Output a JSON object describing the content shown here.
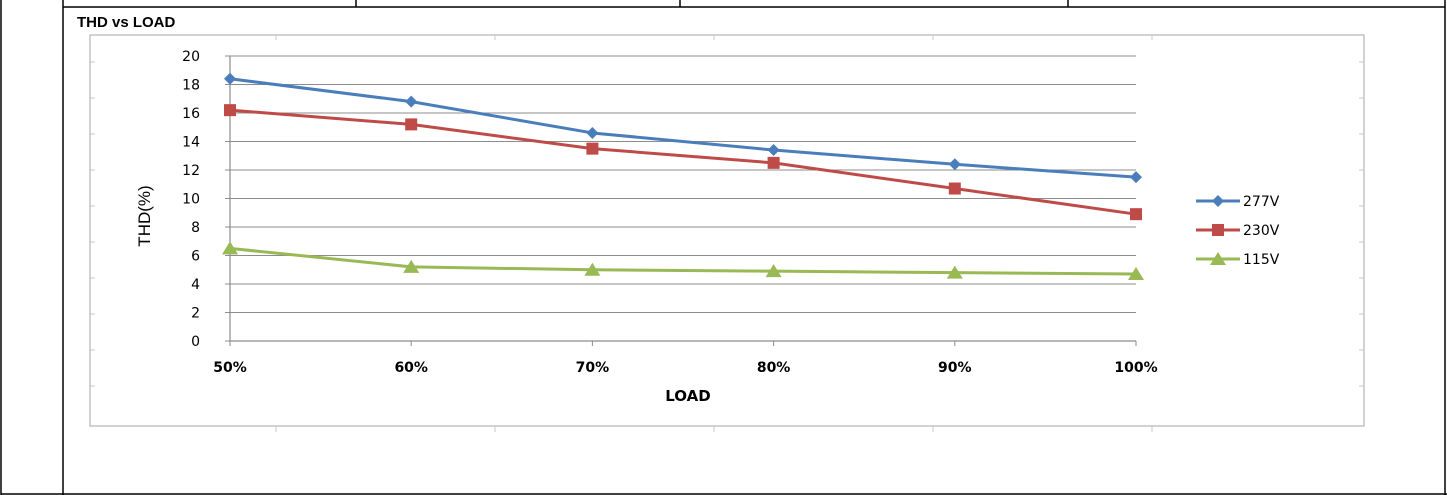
{
  "chart_data": {
    "type": "line",
    "title": "THD vs LOAD",
    "xlabel": "LOAD",
    "ylabel": "THD(%)",
    "categories": [
      "50%",
      "60%",
      "70%",
      "80%",
      "90%",
      "100%"
    ],
    "ylim": [
      0,
      20
    ],
    "yticks": [
      0,
      2,
      4,
      6,
      8,
      10,
      12,
      14,
      16,
      18,
      20
    ],
    "grid": true,
    "legend_position": "right",
    "series": [
      {
        "name": "277V",
        "color": "#4a7ebb",
        "marker": "diamond",
        "values": [
          18.4,
          16.8,
          14.6,
          13.4,
          12.4,
          11.5
        ]
      },
      {
        "name": "230V",
        "color": "#be4b48",
        "marker": "square",
        "values": [
          16.2,
          15.2,
          13.5,
          12.5,
          10.7,
          8.9
        ]
      },
      {
        "name": "115V",
        "color": "#98b954",
        "marker": "triangle",
        "values": [
          6.5,
          5.2,
          5.0,
          4.9,
          4.8,
          4.7
        ]
      }
    ]
  }
}
